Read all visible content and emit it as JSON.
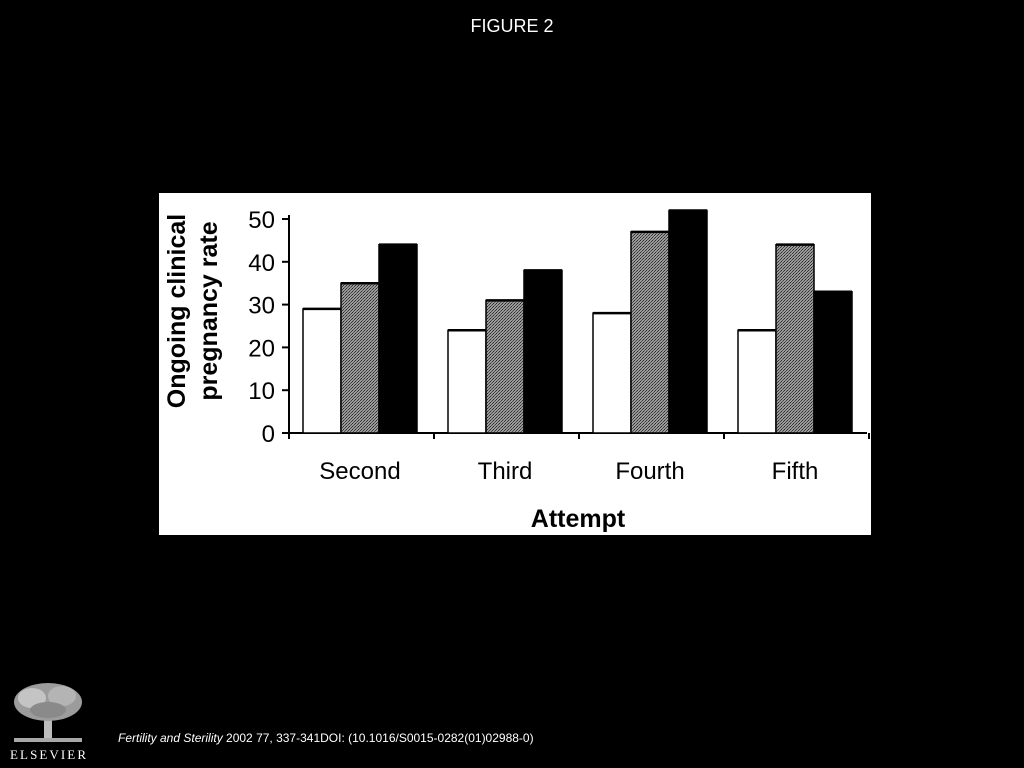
{
  "slide": {
    "title": "FIGURE 2"
  },
  "citation": {
    "journal": "Fertility and Sterility",
    "details": " 2002 77, 337-341DOI: (10.1016/S0015-0282(01)02988-0)"
  },
  "publisher": {
    "logo_text": "ELSEVIER",
    "logo_icon": "elsevier-tree-icon"
  },
  "colors": {
    "background": "#000000",
    "panel": "#ffffff",
    "series": [
      "#ffffff",
      "#8a8a8a",
      "#000000"
    ]
  },
  "chart_data": {
    "type": "bar",
    "title": "",
    "xlabel": "Attempt",
    "ylabel": [
      "Ongoing clinical",
      "pregnancy rate"
    ],
    "ylim": [
      0,
      50
    ],
    "yticks": [
      0,
      10,
      20,
      30,
      40,
      50
    ],
    "categories": [
      "Second",
      "Third",
      "Fourth",
      "Fifth"
    ],
    "series": [
      {
        "values": [
          29,
          24,
          28,
          24
        ]
      },
      {
        "values": [
          35,
          31,
          47,
          44
        ]
      },
      {
        "values": [
          44,
          38,
          52,
          33
        ]
      }
    ],
    "grid": false,
    "legend": "none"
  }
}
